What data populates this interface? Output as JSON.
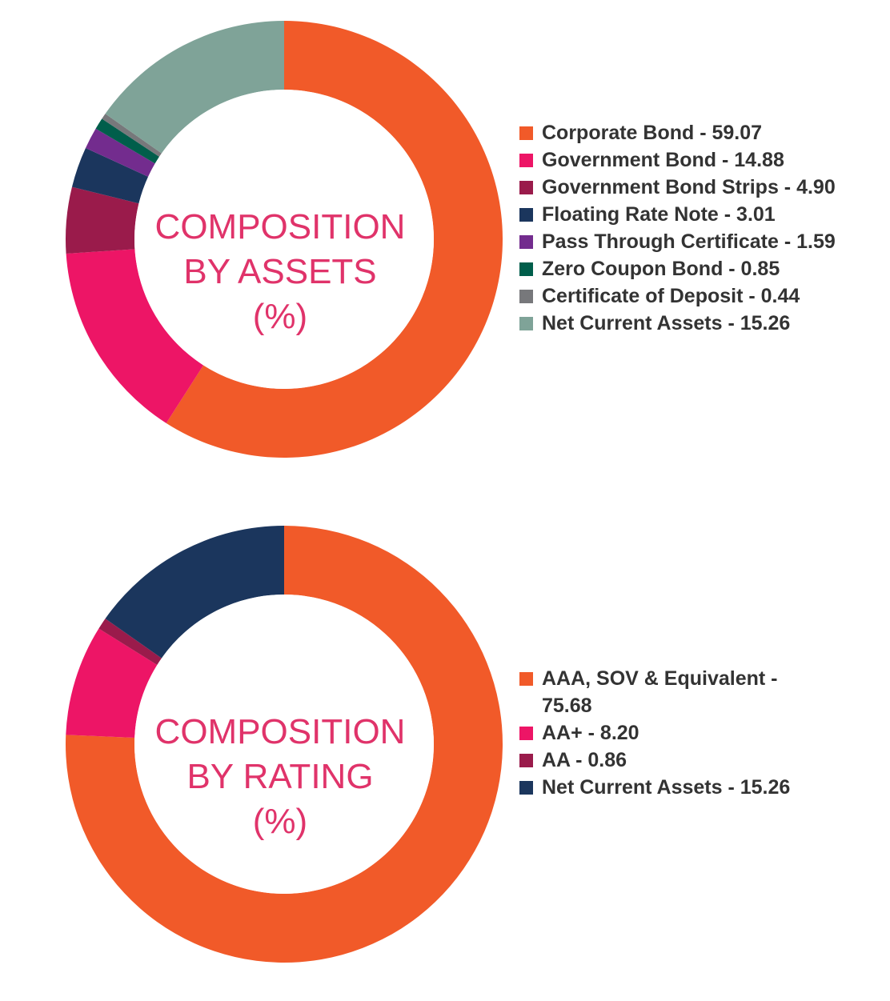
{
  "chart_data": [
    {
      "type": "pie",
      "variant": "donut",
      "title": [
        "COMPOSITION",
        "BY ASSETS",
        "(%)"
      ],
      "legend_position": "right",
      "slices": [
        {
          "label": "Corporate Bond - 59.07",
          "name": "Corporate Bond",
          "value": 59.07,
          "color": "#F15A29"
        },
        {
          "label": "Government Bond - 14.88",
          "name": "Government Bond",
          "value": 14.88,
          "color": "#ED1566"
        },
        {
          "label": "Government Bond Strips - 4.90",
          "name": "Government Bond Strips",
          "value": 4.9,
          "color": "#9A1B4B"
        },
        {
          "label": "Floating Rate Note - 3.01",
          "name": "Floating Rate Note",
          "value": 3.01,
          "color": "#1B365D"
        },
        {
          "label": "Pass Through Certificate - 1.59",
          "name": "Pass Through Certificate",
          "value": 1.59,
          "color": "#732C8E"
        },
        {
          "label": "Zero Coupon Bond - 0.85",
          "name": "Zero Coupon Bond",
          "value": 0.85,
          "color": "#005E4B"
        },
        {
          "label": "Certificate of Deposit - 0.44",
          "name": "Certificate of Deposit",
          "value": 0.44,
          "color": "#77787B"
        },
        {
          "label": "Net Current Assets - 15.26",
          "name": "Net Current Assets",
          "value": 15.26,
          "color": "#7FA398"
        }
      ]
    },
    {
      "type": "pie",
      "variant": "donut",
      "title": [
        "COMPOSITION",
        "BY RATING",
        "(%)"
      ],
      "legend_position": "right",
      "slices": [
        {
          "label": "AAA, SOV & Equivalent - 75.68",
          "name": "AAA, SOV & Equivalent",
          "value": 75.68,
          "color": "#F15A29"
        },
        {
          "label": "AA+ - 8.20",
          "name": "AA+",
          "value": 8.2,
          "color": "#ED1566"
        },
        {
          "label": "AA - 0.86",
          "name": "AA",
          "value": 0.86,
          "color": "#9A1B4B"
        },
        {
          "label": "Net Current Assets - 15.26",
          "name": "Net Current Assets",
          "value": 15.26,
          "color": "#1B365D"
        }
      ]
    }
  ]
}
